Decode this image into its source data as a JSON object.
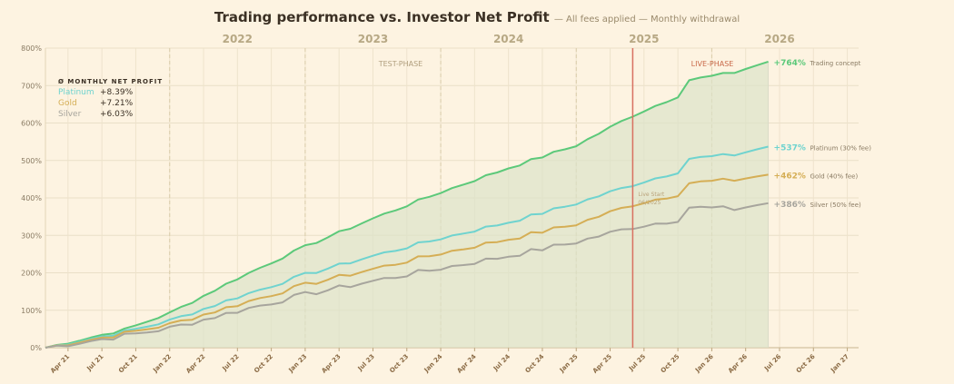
{
  "chart_data": {
    "type": "line",
    "title": "Trading performance vs. Investor Net Profit",
    "subtitle": "— All fees applied — Monthly withdrawal",
    "y_ticks": [
      "0%",
      "100%",
      "200%",
      "300%",
      "400%",
      "500%",
      "600%",
      "700%",
      "800%"
    ],
    "ylim": [
      0,
      800
    ],
    "x_tick_labels": [
      "Apr 21",
      "Jul 21",
      "Oct 21",
      "Jan 22",
      "Apr 22",
      "Jul 22",
      "Oct 22",
      "Jan 23",
      "Apr 23",
      "Jul 23",
      "Oct 23",
      "Jan 24",
      "Apr 24",
      "Jul 24",
      "Oct 24",
      "Jan 25",
      "Apr 25",
      "Jul 25",
      "Oct 25",
      "Jan 26",
      "Apr 26",
      "Jul 26",
      "Oct 26",
      "Jan 27"
    ],
    "xlim": [
      "2021-02",
      "2027-02"
    ],
    "year_labels": [
      {
        "label": "2022",
        "date": "2021-11"
      },
      {
        "label": "2023",
        "date": "2022-11"
      },
      {
        "label": "2024",
        "date": "2023-11"
      },
      {
        "label": "2025",
        "date": "2024-11"
      },
      {
        "label": "2026",
        "date": "2025-11"
      }
    ],
    "phases": {
      "test": "TEST-PHASE",
      "live": "LIVE-PHASE",
      "live_start_date": "2025-06"
    },
    "live_start_note": [
      "Live Start",
      "06/2025"
    ],
    "legend_title": "Ø MONTHLY NET PROFIT",
    "legend": [
      {
        "name": "Platinum",
        "value": "+8.39%"
      },
      {
        "name": "Gold",
        "value": "+7.21%"
      },
      {
        "name": "Silver",
        "value": "+6.03%"
      }
    ],
    "series": [
      {
        "name": "Trading concept",
        "color": "#5cc97a",
        "end_label": "+764%",
        "points": [
          [
            "2021-02",
            0
          ],
          [
            "2021-09",
            48
          ],
          [
            "2022-01",
            92
          ],
          [
            "2022-07",
            185
          ],
          [
            "2023-01",
            270
          ],
          [
            "2023-07",
            345
          ],
          [
            "2024-01",
            415
          ],
          [
            "2024-07",
            480
          ],
          [
            "2025-01",
            540
          ],
          [
            "2025-06",
            620
          ],
          [
            "2025-10",
            672
          ],
          [
            "2025-11",
            715
          ],
          [
            "2026-03",
            735
          ],
          [
            "2026-06",
            764
          ]
        ]
      },
      {
        "name": "Platinum (30% fee)",
        "color": "#6fd3cf",
        "end_label": "+537%",
        "points": [
          [
            "2021-02",
            0
          ],
          [
            "2021-09",
            42
          ],
          [
            "2022-01",
            72
          ],
          [
            "2022-07",
            135
          ],
          [
            "2023-01",
            195
          ],
          [
            "2023-07",
            245
          ],
          [
            "2024-01",
            292
          ],
          [
            "2024-07",
            335
          ],
          [
            "2025-01",
            385
          ],
          [
            "2025-06",
            435
          ],
          [
            "2025-10",
            470
          ],
          [
            "2025-11",
            505
          ],
          [
            "2026-03",
            515
          ],
          [
            "2026-06",
            537
          ]
        ]
      },
      {
        "name": "Gold (40% fee)",
        "color": "#d5ae55",
        "end_label": "+462%",
        "points": [
          [
            "2021-02",
            0
          ],
          [
            "2021-09",
            38
          ],
          [
            "2022-01",
            62
          ],
          [
            "2022-07",
            115
          ],
          [
            "2023-01",
            168
          ],
          [
            "2023-07",
            210
          ],
          [
            "2024-01",
            252
          ],
          [
            "2024-07",
            290
          ],
          [
            "2025-01",
            330
          ],
          [
            "2025-06",
            382
          ],
          [
            "2025-10",
            410
          ],
          [
            "2025-11",
            440
          ],
          [
            "2026-03",
            448
          ],
          [
            "2026-06",
            462
          ]
        ]
      },
      {
        "name": "Silver (50% fee)",
        "color": "#a7a59d",
        "end_label": "+386%",
        "points": [
          [
            "2021-02",
            0
          ],
          [
            "2021-09",
            32
          ],
          [
            "2022-01",
            52
          ],
          [
            "2022-07",
            98
          ],
          [
            "2023-01",
            142
          ],
          [
            "2023-07",
            178
          ],
          [
            "2024-01",
            212
          ],
          [
            "2024-07",
            245
          ],
          [
            "2025-01",
            282
          ],
          [
            "2025-06",
            322
          ],
          [
            "2025-10",
            342
          ],
          [
            "2025-11",
            375
          ],
          [
            "2026-03",
            370
          ],
          [
            "2026-06",
            386
          ]
        ]
      }
    ],
    "grid": true,
    "legend_position": "top-left"
  }
}
